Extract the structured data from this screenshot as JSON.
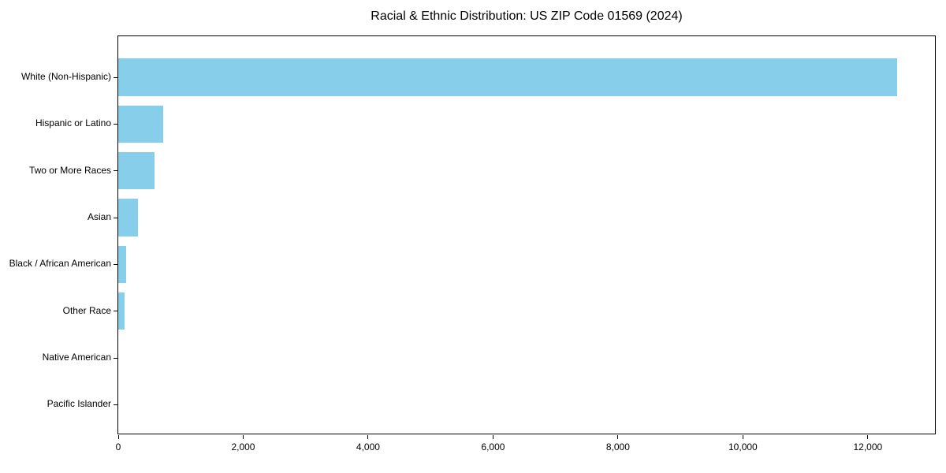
{
  "chart_data": {
    "type": "bar",
    "orientation": "horizontal",
    "title": "Racial & Ethnic Distribution: US ZIP Code 01569 (2024)",
    "categories": [
      "White (Non-Hispanic)",
      "Hispanic or Latino",
      "Two or More Races",
      "Asian",
      "Black / African American",
      "Other Race",
      "Native American",
      "Pacific Islander"
    ],
    "values": [
      12470,
      715,
      580,
      310,
      125,
      95,
      0,
      0
    ],
    "xlabel": "",
    "ylabel": "",
    "xlim": [
      0,
      13100
    ],
    "xticks": [
      0,
      2000,
      4000,
      6000,
      8000,
      10000,
      12000
    ],
    "xtick_labels": [
      "0",
      "2,000",
      "4,000",
      "6,000",
      "8,000",
      "10,000",
      "12,000"
    ],
    "bar_color": "#87CEEB",
    "axis_color": "#000000",
    "background": "#FFFFFF",
    "grid": false,
    "legend": null
  }
}
